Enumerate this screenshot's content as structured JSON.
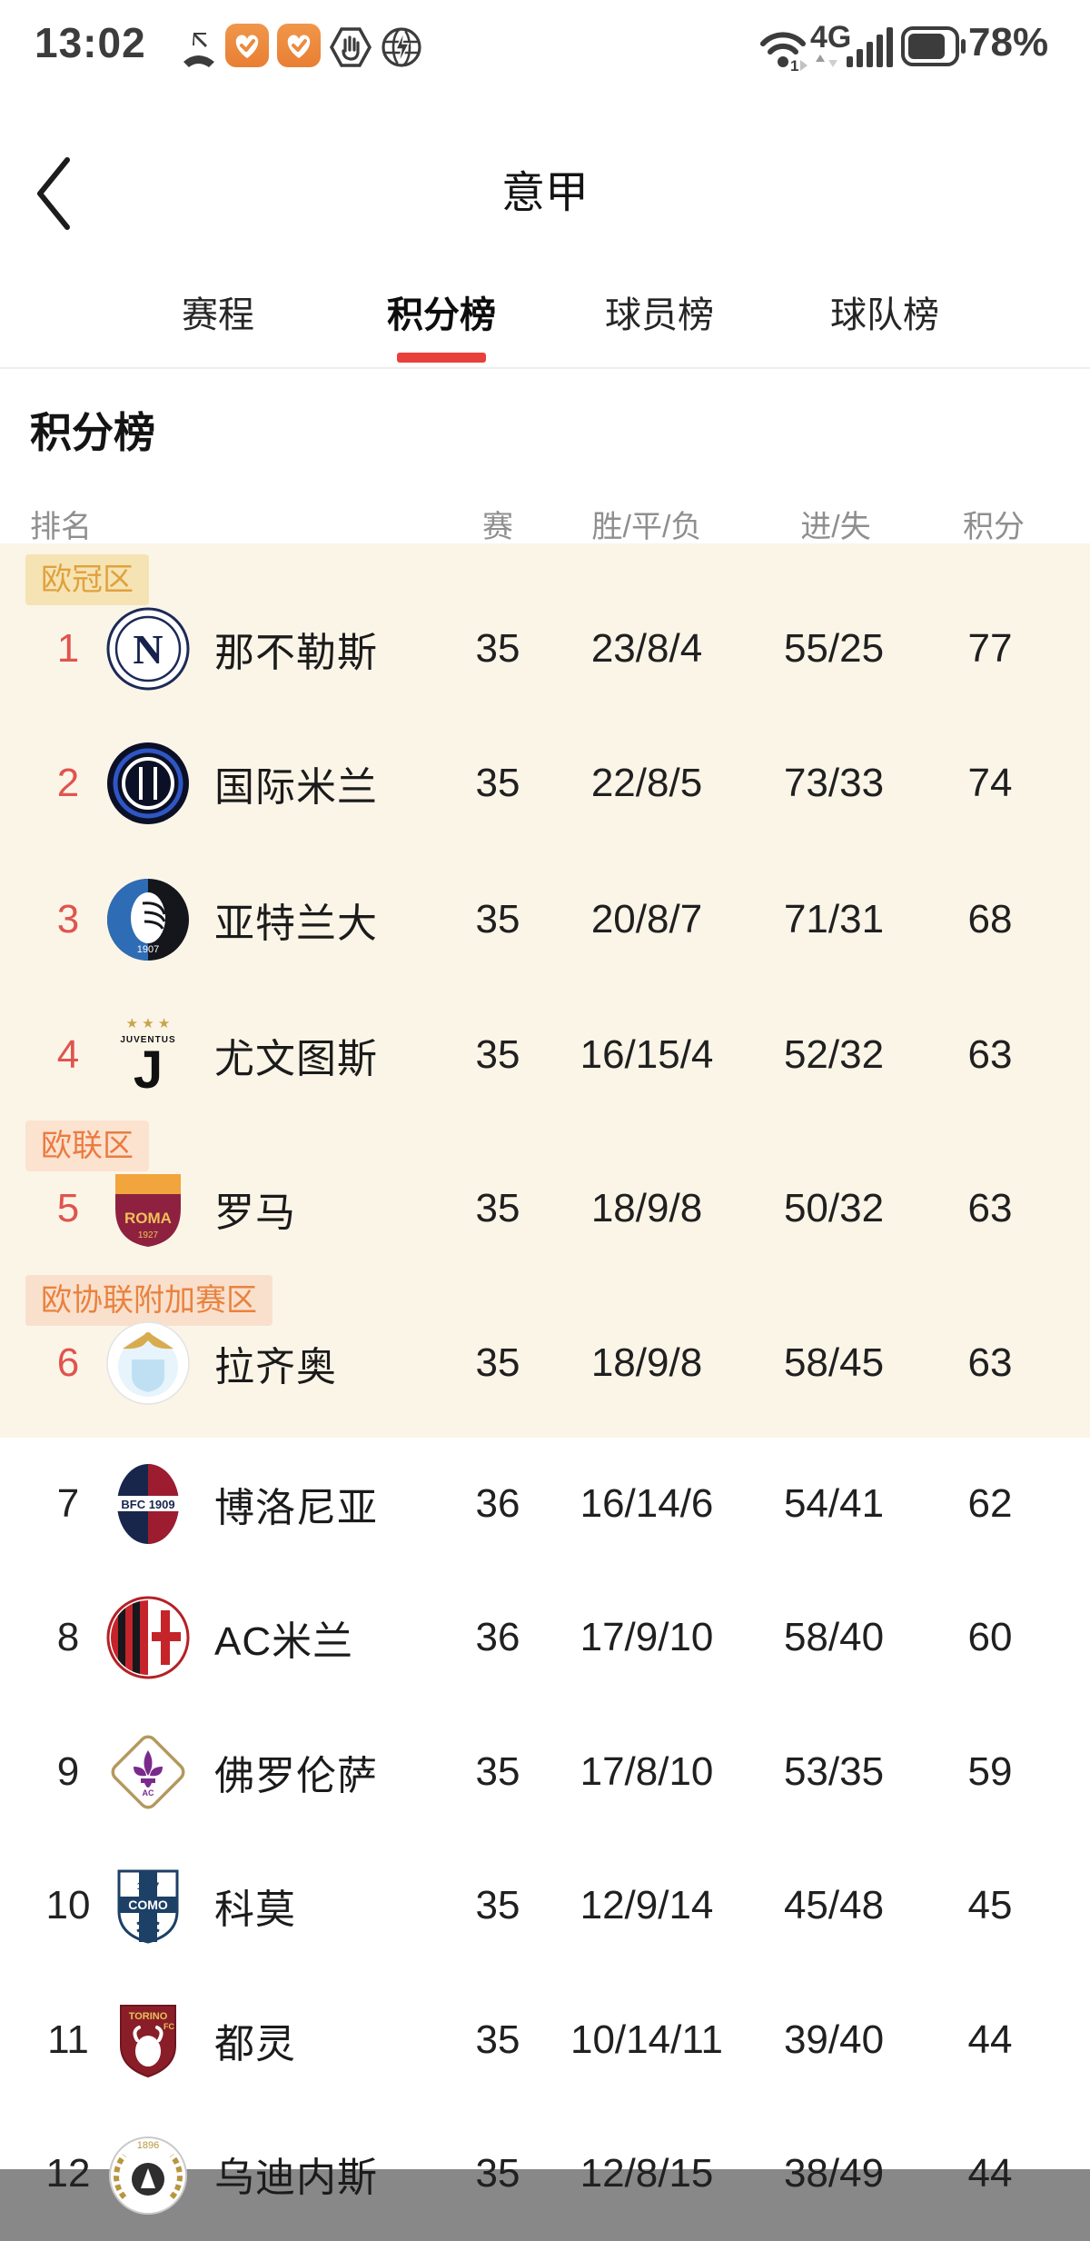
{
  "status_bar": {
    "time": "13:02",
    "network_type": "4G",
    "battery_percent": "78%",
    "icons": [
      "missed-call-icon",
      "heart-badge-icon",
      "heart-badge-icon",
      "hand-hexagon-icon",
      "globe-bolt-icon",
      "wifi-icon",
      "signal-bars-icon",
      "battery-icon"
    ]
  },
  "header": {
    "title": "意甲",
    "back_icon": "chevron-left"
  },
  "tabs": [
    {
      "label": "赛程",
      "active": false
    },
    {
      "label": "积分榜",
      "active": true
    },
    {
      "label": "球员榜",
      "active": false
    },
    {
      "label": "球队榜",
      "active": false
    }
  ],
  "section": {
    "title": "积分榜"
  },
  "table": {
    "headers": {
      "rank": "排名",
      "played": "赛",
      "wdl": "胜/平/负",
      "goals": "进/失",
      "points": "积分"
    },
    "zones": [
      {
        "label": "欧冠区",
        "before_rank": 1,
        "bg": "#f6e3b4",
        "color": "#dfa23c"
      },
      {
        "label": "欧联区",
        "before_rank": 5,
        "bg": "#fbe3d0",
        "color": "#ec7b40"
      },
      {
        "label": "欧协联附加赛区",
        "before_rank": 6,
        "bg": "#f9e0cc",
        "color": "#e9823f"
      }
    ],
    "rows": [
      {
        "rank": "1",
        "team": "那不勒斯",
        "logo": "napoli",
        "played": "35",
        "wdl": "23/8/4",
        "goals": "55/25",
        "points": "77",
        "highlighted": true
      },
      {
        "rank": "2",
        "team": "国际米兰",
        "logo": "inter",
        "played": "35",
        "wdl": "22/8/5",
        "goals": "73/33",
        "points": "74",
        "highlighted": true
      },
      {
        "rank": "3",
        "team": "亚特兰大",
        "logo": "atalanta",
        "played": "35",
        "wdl": "20/8/7",
        "goals": "71/31",
        "points": "68",
        "highlighted": true
      },
      {
        "rank": "4",
        "team": "尤文图斯",
        "logo": "juventus",
        "played": "35",
        "wdl": "16/15/4",
        "goals": "52/32",
        "points": "63",
        "highlighted": true
      },
      {
        "rank": "5",
        "team": "罗马",
        "logo": "roma",
        "played": "35",
        "wdl": "18/9/8",
        "goals": "50/32",
        "points": "63",
        "highlighted": true
      },
      {
        "rank": "6",
        "team": "拉齐奥",
        "logo": "lazio",
        "played": "35",
        "wdl": "18/9/8",
        "goals": "58/45",
        "points": "63",
        "highlighted": true
      },
      {
        "rank": "7",
        "team": "博洛尼亚",
        "logo": "bologna",
        "played": "36",
        "wdl": "16/14/6",
        "goals": "54/41",
        "points": "62",
        "highlighted": false
      },
      {
        "rank": "8",
        "team": "AC米兰",
        "logo": "milan",
        "played": "36",
        "wdl": "17/9/10",
        "goals": "58/40",
        "points": "60",
        "highlighted": false
      },
      {
        "rank": "9",
        "team": "佛罗伦萨",
        "logo": "fiorentina",
        "played": "35",
        "wdl": "17/8/10",
        "goals": "53/35",
        "points": "59",
        "highlighted": false
      },
      {
        "rank": "10",
        "team": "科莫",
        "logo": "como",
        "played": "35",
        "wdl": "12/9/14",
        "goals": "45/48",
        "points": "45",
        "highlighted": false
      },
      {
        "rank": "11",
        "team": "都灵",
        "logo": "torino",
        "played": "35",
        "wdl": "10/14/11",
        "goals": "39/40",
        "points": "44",
        "highlighted": false
      },
      {
        "rank": "12",
        "team": "乌迪内斯",
        "logo": "udinese",
        "played": "35",
        "wdl": "12/8/15",
        "goals": "38/49",
        "points": "44",
        "highlighted": false
      }
    ]
  },
  "colors": {
    "accent_red": "#e8403a",
    "rank_red": "#e0544e",
    "highlight_background": "#fbf5e8",
    "header_gray": "#8f8f8f",
    "status_icon": "#3c3c3c",
    "app_icon_orange": "#ec8a3e"
  }
}
